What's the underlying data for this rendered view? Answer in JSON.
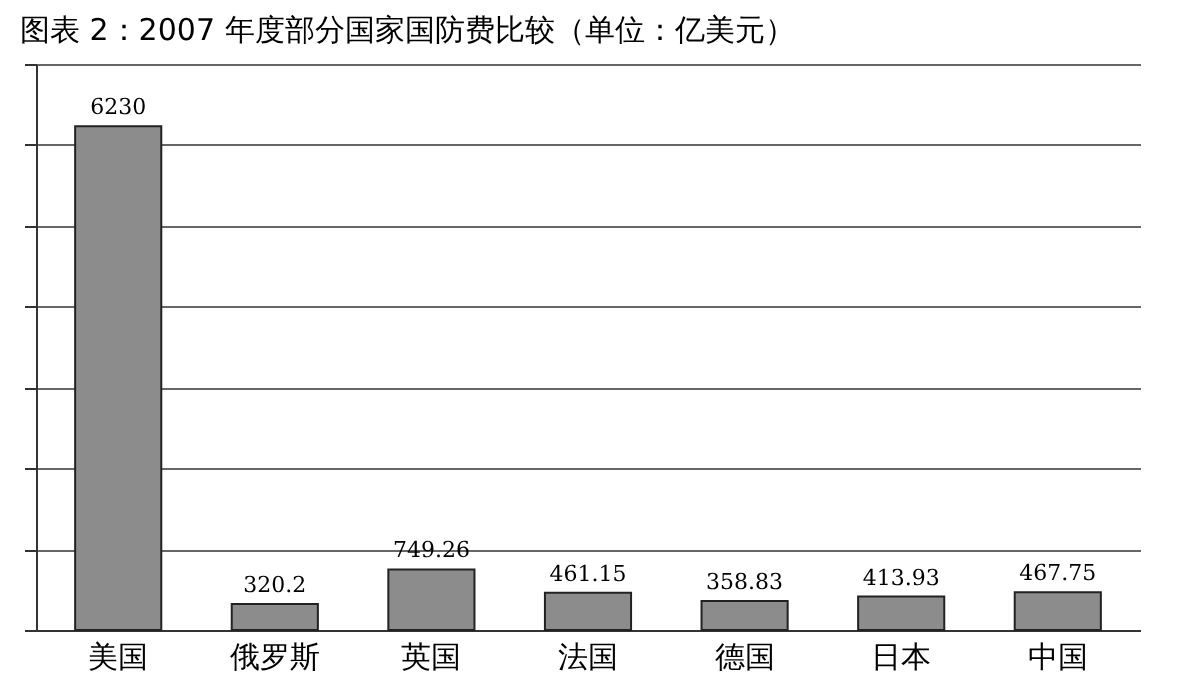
{
  "chart_data": {
    "type": "bar",
    "title": "图表 2：2007 年度部分国家国防费比较（单位：亿美元）",
    "categories": [
      "美国",
      "俄罗斯",
      "英国",
      "法国",
      "德国",
      "日本",
      "中国"
    ],
    "values": [
      6230,
      320.2,
      749.26,
      461.15,
      358.83,
      413.93,
      467.75
    ],
    "color": "#8c8c8c",
    "ylim": [
      0,
      7000
    ],
    "yticks": [
      {
        "value": 0,
        "label": null
      },
      {
        "value": 1000,
        "label": null
      },
      {
        "value": 2000,
        "label": null
      },
      {
        "value": 3000,
        "label": null
      },
      {
        "value": 4000,
        "label": null
      },
      {
        "value": 5000,
        "label": null
      },
      {
        "value": 6000,
        "label": null
      },
      {
        "value": 7000,
        "label": null
      }
    ],
    "grid": "y",
    "tick_labels": "x",
    "data_labels": true
  }
}
